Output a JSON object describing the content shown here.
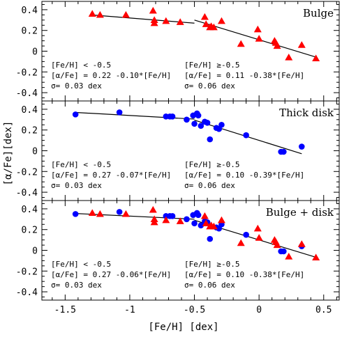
{
  "chart_data": {
    "type": "scatter",
    "xlabel": "[Fe/H] [dex]",
    "ylabel": "[α/Fe][dex]",
    "xlim": [
      -1.68,
      0.62
    ],
    "ylim": [
      -0.48,
      0.48
    ],
    "x_ticks": [
      -1.5,
      -1,
      -0.5,
      0,
      0.5
    ],
    "x_tick_labels": [
      "-1.5",
      "-1",
      "-0.5",
      "0",
      "0.5"
    ],
    "y_ticks": [
      -0.4,
      -0.2,
      0,
      0.2,
      0.4
    ],
    "y_tick_labels": [
      "-0.4",
      "-0.2",
      "0",
      "0.2",
      "0.4"
    ],
    "colors": {
      "bulge": "#ff0000",
      "disk": "#0000ff",
      "fit": "#000000"
    },
    "panels": [
      {
        "title": "Bulge",
        "annotations": {
          "left": [
            "[Fe/H] < -0.5",
            "[α/Fe] = 0.22 -0.10*[Fe/H]",
            "σ= 0.03 dex"
          ],
          "right": [
            "[Fe/H] ≥-0.5",
            "[α/Fe] = 0.11 -0.38*[Fe/H]",
            "σ= 0.06 dex"
          ]
        },
        "fit": {
          "low": {
            "intercept": 0.22,
            "slope": -0.1,
            "x": [
              -1.3,
              -0.5
            ]
          },
          "high": {
            "intercept": 0.11,
            "slope": -0.38,
            "x": [
              -0.5,
              0.45
            ]
          }
        },
        "series": [
          {
            "marker": "triangle",
            "color": "#ff0000",
            "x": [
              -1.29,
              -1.23,
              -1.03,
              -0.82,
              -0.81,
              -0.81,
              -0.72,
              -0.61,
              -0.42,
              -0.41,
              -0.38,
              -0.37,
              -0.35,
              -0.29,
              -0.14,
              -0.01,
              0.0,
              0.12,
              0.13,
              0.14,
              0.23,
              0.33,
              0.44
            ],
            "y": [
              0.36,
              0.35,
              0.35,
              0.39,
              0.27,
              0.3,
              0.29,
              0.28,
              0.33,
              0.26,
              0.23,
              0.24,
              0.23,
              0.29,
              0.07,
              0.21,
              0.12,
              0.1,
              0.08,
              0.05,
              -0.06,
              0.06,
              -0.07
            ]
          }
        ]
      },
      {
        "title": "Thick disk",
        "annotations": {
          "left": [
            "[Fe/H] < -0.5",
            "[α/Fe] = 0.27 -0.07*[Fe/H]",
            "σ= 0.03 dex"
          ],
          "right": [
            "[Fe/H] ≥-0.5",
            "[α/Fe] = 0.10 -0.39*[Fe/H]",
            "σ= 0.06 dex"
          ]
        },
        "fit": {
          "low": {
            "intercept": 0.27,
            "slope": -0.07,
            "x": [
              -1.42,
              -0.5
            ]
          },
          "high": {
            "intercept": 0.1,
            "slope": -0.39,
            "x": [
              -0.5,
              0.33
            ]
          }
        },
        "series": [
          {
            "marker": "circle",
            "color": "#0000ff",
            "x": [
              -1.42,
              -1.08,
              -0.72,
              -0.69,
              -0.67,
              -0.56,
              -0.51,
              -0.5,
              -0.48,
              -0.47,
              -0.45,
              -0.42,
              -0.4,
              -0.38,
              -0.33,
              -0.31,
              -0.29,
              -0.1,
              0.17,
              0.19,
              0.33
            ],
            "y": [
              0.35,
              0.37,
              0.33,
              0.33,
              0.33,
              0.3,
              0.34,
              0.26,
              0.36,
              0.34,
              0.24,
              0.28,
              0.27,
              0.11,
              0.22,
              0.21,
              0.25,
              0.15,
              -0.01,
              -0.01,
              0.04
            ]
          }
        ]
      },
      {
        "title": "Bulge + disk",
        "annotations": {
          "left": [
            "[Fe/H] < -0.5",
            "[α/Fe] = 0.27 -0.06*[Fe/H]",
            "σ= 0.03 dex"
          ],
          "right": [
            "[Fe/H] ≥-0.5",
            "[α/Fe] = 0.10 -0.38*[Fe/H]",
            "σ= 0.06 dex"
          ]
        },
        "fit": {
          "low": {
            "intercept": 0.27,
            "slope": -0.06,
            "x": [
              -1.42,
              -0.5
            ]
          },
          "high": {
            "intercept": 0.1,
            "slope": -0.38,
            "x": [
              -0.5,
              0.45
            ]
          }
        },
        "series": [
          {
            "marker": "circle",
            "color": "#0000ff",
            "x": [
              -1.42,
              -1.08,
              -0.72,
              -0.69,
              -0.67,
              -0.56,
              -0.51,
              -0.5,
              -0.48,
              -0.47,
              -0.45,
              -0.42,
              -0.4,
              -0.38,
              -0.33,
              -0.31,
              -0.29,
              -0.1,
              0.17,
              0.19,
              0.33
            ],
            "y": [
              0.35,
              0.37,
              0.33,
              0.33,
              0.33,
              0.3,
              0.34,
              0.26,
              0.36,
              0.34,
              0.24,
              0.28,
              0.27,
              0.11,
              0.22,
              0.21,
              0.25,
              0.15,
              -0.01,
              -0.01,
              0.04
            ]
          },
          {
            "marker": "triangle",
            "color": "#ff0000",
            "x": [
              -1.29,
              -1.23,
              -1.03,
              -0.82,
              -0.81,
              -0.81,
              -0.72,
              -0.61,
              -0.42,
              -0.41,
              -0.38,
              -0.37,
              -0.35,
              -0.29,
              -0.14,
              -0.01,
              0.0,
              0.12,
              0.13,
              0.14,
              0.23,
              0.33,
              0.44
            ],
            "y": [
              0.36,
              0.35,
              0.35,
              0.39,
              0.27,
              0.3,
              0.29,
              0.28,
              0.33,
              0.26,
              0.23,
              0.24,
              0.23,
              0.29,
              0.07,
              0.21,
              0.12,
              0.1,
              0.08,
              0.05,
              -0.06,
              0.06,
              -0.07
            ]
          }
        ]
      }
    ]
  }
}
